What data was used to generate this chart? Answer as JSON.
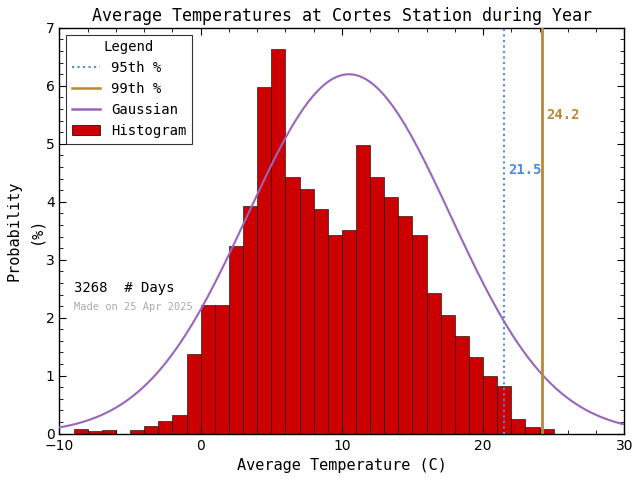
{
  "title": "Average Temperatures at Cortes Station during Year",
  "xlabel": "Average Temperature (C)",
  "ylabel_top": "Probability",
  "ylabel_bottom": "(%)",
  "xlim": [
    -10,
    30
  ],
  "ylim": [
    0,
    7
  ],
  "yticks": [
    0,
    1,
    2,
    3,
    4,
    5,
    6,
    7
  ],
  "xticks": [
    -10,
    0,
    10,
    20,
    30
  ],
  "bar_lefts": [
    -9,
    -8,
    -7,
    -6,
    -5,
    -4,
    -3,
    -2,
    -1,
    0,
    1,
    2,
    3,
    4,
    5,
    6,
    7,
    8,
    9,
    10,
    11,
    12,
    13,
    14,
    15,
    16,
    17,
    18,
    19,
    20,
    21,
    22,
    23,
    24,
    25,
    26,
    27,
    28,
    29
  ],
  "bar_heights": [
    0.08,
    0.05,
    0.07,
    0.0,
    0.06,
    0.13,
    0.21,
    0.33,
    1.37,
    2.22,
    2.22,
    3.23,
    3.92,
    5.98,
    6.63,
    4.42,
    4.22,
    3.88,
    3.42,
    3.52,
    4.98,
    4.42,
    4.08,
    3.75,
    3.42,
    2.43,
    2.05,
    1.68,
    1.32,
    1.0,
    0.83,
    0.25,
    0.12,
    0.08,
    0.0,
    0.0,
    0.0,
    0.0,
    0.0
  ],
  "gaussian_mean": 10.5,
  "gaussian_std": 7.2,
  "gaussian_amplitude": 6.2,
  "percentile_95": 21.5,
  "percentile_99": 24.2,
  "n_days": 3268,
  "watermark": "Made on 25 Apr 2025",
  "bar_color": "#cc0000",
  "bar_edge_color": "#000000",
  "gaussian_color": "#9966bb",
  "p95_color": "#5588dd",
  "p99_color": "#bb8833",
  "background_color": "#ffffff",
  "title_fontsize": 12,
  "axis_fontsize": 11,
  "tick_fontsize": 10,
  "legend_fontsize": 10
}
